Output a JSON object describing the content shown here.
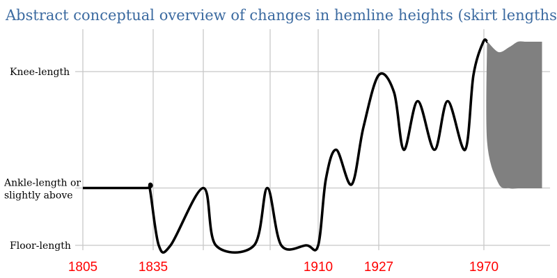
{
  "chart_data": {
    "type": "line",
    "title": "Abstract conceptual overview of changes in hemline heights (skirt lengths):",
    "xlabel": "",
    "ylabel": "",
    "x_ticks": [
      "1805",
      "1835",
      "1910",
      "1927",
      "1970"
    ],
    "x_tick_values": [
      1805,
      1835,
      1910,
      1927,
      1970
    ],
    "x_extra_gridlines": [
      1855
    ],
    "xlim": [
      1805,
      1984
    ],
    "y_levels": [
      {
        "label_lines": [
          "Knee-length"
        ],
        "value": 1.0
      },
      {
        "label_lines": [
          "Ankle-length or",
          "slightly above"
        ],
        "value": 0.33
      },
      {
        "label_lines": [
          "Floor-length"
        ],
        "value": 0.0
      }
    ],
    "ylim": [
      0,
      1.15
    ],
    "tick_color": "#ff0000",
    "line_color": "#000000",
    "band_color": "#808080",
    "series": [
      {
        "values": [
          [
            1805,
            0.33
          ],
          [
            1827,
            0.33
          ],
          [
            1833,
            0.33
          ],
          [
            1836,
            0.0
          ],
          [
            1841,
            0.0
          ],
          [
            1850,
            0.33
          ],
          [
            1855,
            0.0
          ],
          [
            1866,
            0.0
          ],
          [
            1872,
            0.33
          ],
          [
            1878,
            0.0
          ],
          [
            1888,
            0.0
          ],
          [
            1891,
            0.0
          ],
          [
            1896,
            0.38
          ],
          [
            1899,
            0.55
          ],
          [
            1902,
            0.35
          ],
          [
            1906,
            0.68
          ],
          [
            1910,
            0.98
          ],
          [
            1913,
            0.88
          ],
          [
            1917,
            0.55
          ],
          [
            1920,
            0.83
          ],
          [
            1923,
            0.55
          ],
          [
            1926,
            0.83
          ],
          [
            1929,
            0.55
          ],
          [
            1932,
            0.98
          ],
          [
            1935,
            1.17
          ],
          [
            1938,
            1.17
          ]
        ]
      }
    ],
    "band": {
      "x": [
        1938,
        1938,
        1941,
        1944,
        1947,
        1949,
        1952,
        1956,
        1960,
        1964,
        1968,
        1971,
        1976
      ],
      "upper": [
        1.17,
        1.17,
        1.11,
        1.14,
        1.17,
        1.17,
        1.17,
        1.17,
        1.17,
        1.17,
        1.17,
        1.17,
        1.17
      ],
      "lower": [
        1.17,
        0.6,
        0.36,
        0.33,
        0.33,
        0.33,
        0.33,
        0.33,
        0.33,
        0.33,
        0.33,
        0.33,
        0.33
      ]
    },
    "grid": true,
    "legend": "none"
  }
}
